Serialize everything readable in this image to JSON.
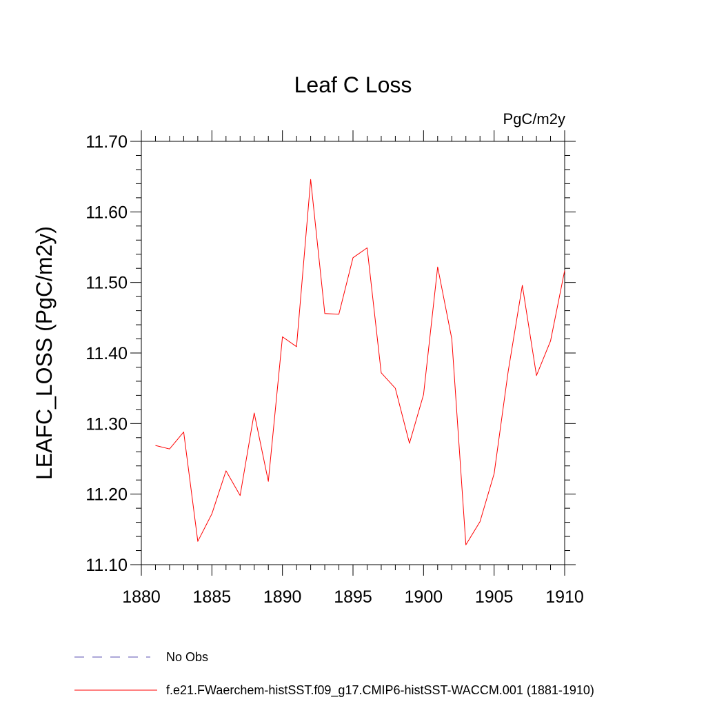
{
  "chart_data": {
    "type": "line",
    "title": "Leaf C Loss",
    "units": "PgC/m2y",
    "ylabel": "LEAFC_LOSS  (PgC/m2y)",
    "xlabel": "",
    "xlim": [
      1880,
      1910
    ],
    "ylim": [
      11.1,
      11.7
    ],
    "x_ticks": [
      1880,
      1885,
      1890,
      1895,
      1900,
      1905,
      1910
    ],
    "x_tick_labels": [
      "1880",
      "1885",
      "1890",
      "1895",
      "1900",
      "1905",
      "1910"
    ],
    "y_ticks": [
      11.1,
      11.2,
      11.3,
      11.4,
      11.5,
      11.6,
      11.7
    ],
    "y_tick_labels": [
      "11.10",
      "11.20",
      "11.30",
      "11.40",
      "11.50",
      "11.60",
      "11.70"
    ],
    "grid": false,
    "legend_position": "bottom",
    "series": [
      {
        "name": "f.e21.FWaerchem-histSST.f09_g17.CMIP6-histSST-WACCM.001 (1881-1910)",
        "color": "#ff0000",
        "style": "solid",
        "x": [
          1881,
          1882,
          1883,
          1884,
          1885,
          1886,
          1887,
          1888,
          1889,
          1890,
          1891,
          1892,
          1893,
          1894,
          1895,
          1896,
          1897,
          1898,
          1899,
          1900,
          1901,
          1902,
          1903,
          1904,
          1905,
          1906,
          1907,
          1908,
          1909,
          1910
        ],
        "y": [
          11.269,
          11.264,
          11.288,
          11.133,
          11.172,
          11.233,
          11.198,
          11.315,
          11.218,
          11.423,
          11.409,
          11.646,
          11.456,
          11.455,
          11.535,
          11.549,
          11.372,
          11.35,
          11.272,
          11.341,
          11.522,
          11.42,
          11.128,
          11.161,
          11.229,
          11.374,
          11.496,
          11.368,
          11.417,
          11.517
        ]
      }
    ],
    "legend": [
      {
        "label": "No Obs",
        "color": "#5a4fb0",
        "style": "dashed"
      },
      {
        "label": "f.e21.FWaerchem-histSST.f09_g17.CMIP6-histSST-WACCM.001 (1881-1910)",
        "color": "#ff0000",
        "style": "solid"
      }
    ]
  }
}
